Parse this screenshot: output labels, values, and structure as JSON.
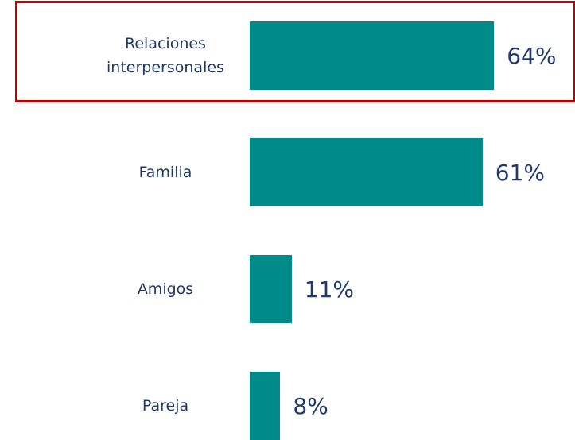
{
  "chart_data": {
    "type": "bar",
    "orientation": "horizontal",
    "categories": [
      "Relaciones interpersonales",
      "Familia",
      "Amigos",
      "Pareja"
    ],
    "values": [
      64,
      61,
      11,
      8
    ],
    "value_labels": [
      "64%",
      "61%",
      "11%",
      "8%"
    ],
    "color": "#008b8b"
  }
}
